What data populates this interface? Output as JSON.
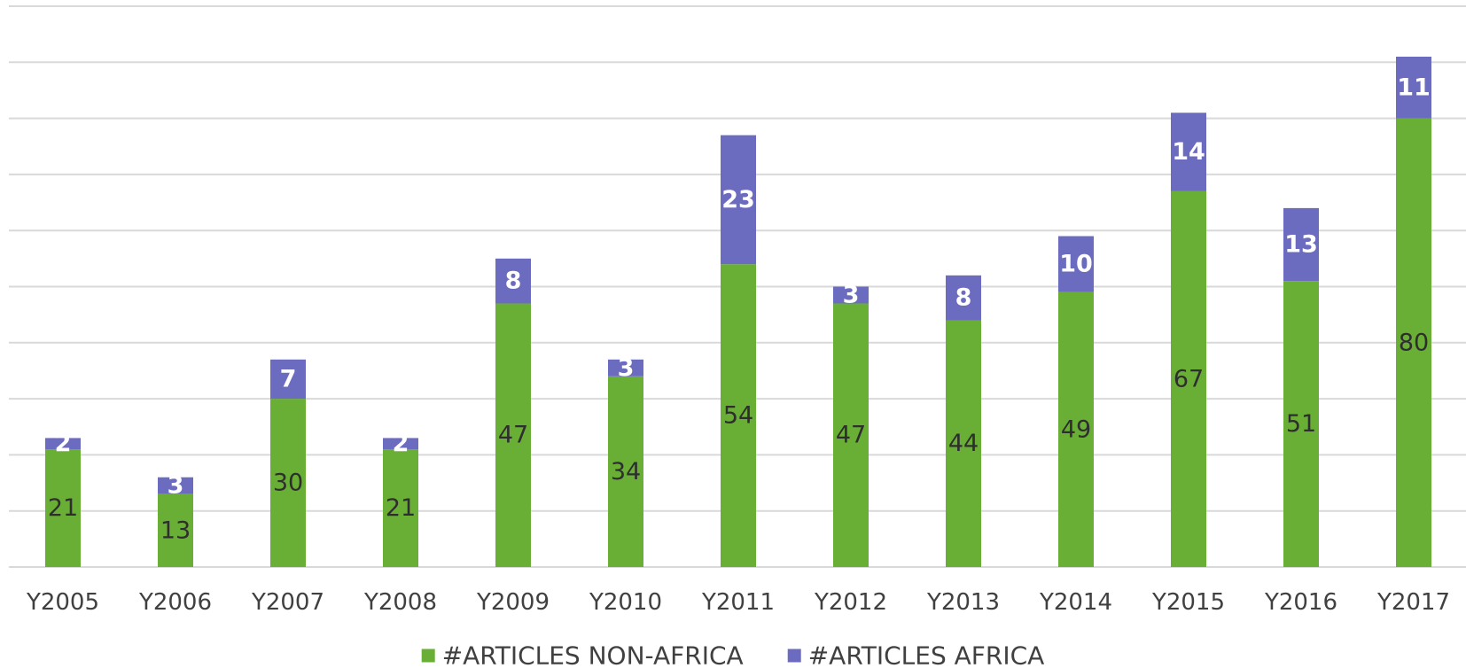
{
  "chart_data": {
    "type": "bar",
    "stacked": true,
    "categories": [
      "Y2005",
      "Y2006",
      "Y2007",
      "Y2008",
      "Y2009",
      "Y2010",
      "Y2011",
      "Y2012",
      "Y2013",
      "Y2014",
      "Y2015",
      "Y2016",
      "Y2017"
    ],
    "series": [
      {
        "name": "#ARTICLES NON-AFRICA",
        "color": "#6aaf35",
        "values": [
          21,
          13,
          30,
          21,
          47,
          34,
          54,
          47,
          44,
          49,
          67,
          51,
          80
        ]
      },
      {
        "name": "#ARTICLES AFRICA",
        "color": "#6b6bc0",
        "values": [
          2,
          3,
          7,
          2,
          8,
          3,
          23,
          3,
          8,
          10,
          14,
          13,
          11
        ]
      }
    ],
    "ylim": [
      0,
      100
    ],
    "grid": true,
    "legend_position": "bottom"
  }
}
